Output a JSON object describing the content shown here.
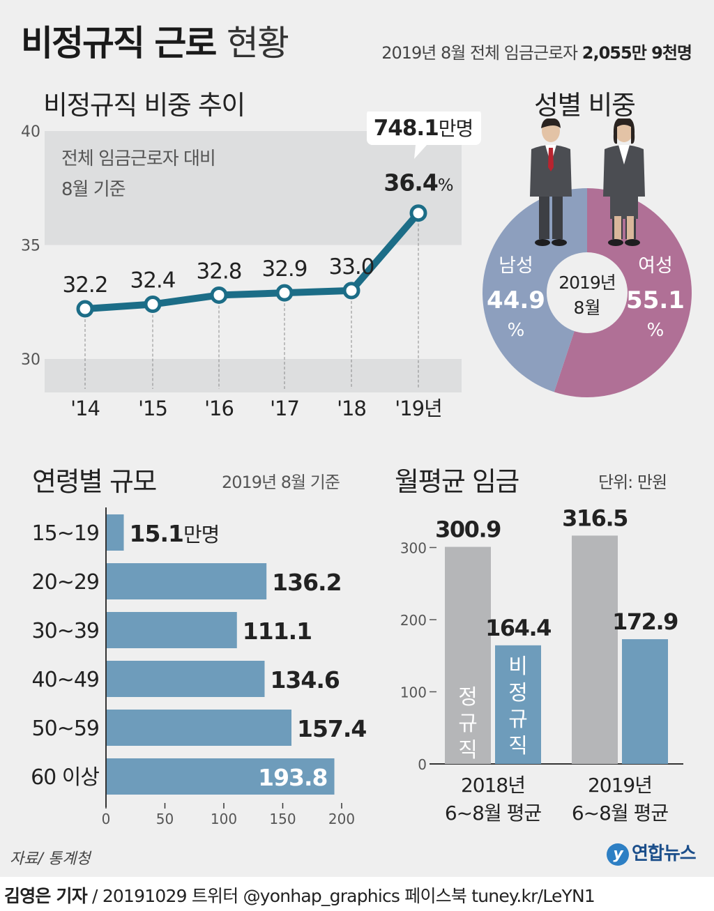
{
  "header": {
    "title_bold": "비정규직 근로",
    "title_light": "현황",
    "subtitle_prefix": "2019년 8월 전체 임금근로자 ",
    "subtitle_value": "2,055만 9천명"
  },
  "trend": {
    "section_title": "비정규직 비중 추이",
    "note_line1": "전체 임금근로자 대비",
    "note_line2": "8월 기준",
    "callout_value": "748.1",
    "callout_unit": "만명",
    "last_value_label": "36.4",
    "last_value_unit": "%"
  },
  "gender": {
    "section_title": "성별 비중",
    "center_line1": "2019년",
    "center_line2": "8월",
    "male_label": "남성",
    "male_value": "44.9",
    "female_label": "여성",
    "female_value": "55.1",
    "pct": "%"
  },
  "age": {
    "section_title": "연령별 규모",
    "note": "2019년 8월 기준",
    "first_unit": "만명"
  },
  "wage": {
    "section_title": "월평균 임금",
    "unit_note": "단위: 만원",
    "bar_label_regular": "정규직",
    "bar_label_nonregular": "비정규직",
    "group1_line1": "2018년",
    "group1_line2": "6~8월 평균",
    "group2_line1": "2019년",
    "group2_line2": "6~8월 평균"
  },
  "chart_data": [
    {
      "type": "line",
      "title": "비정규직 비중 추이",
      "categories": [
        "'14",
        "'15",
        "'16",
        "'17",
        "'18",
        "'19년"
      ],
      "series": [
        {
          "values": [
            32.2,
            32.4,
            32.8,
            32.9,
            33.0,
            36.4
          ]
        }
      ],
      "ylim": [
        30,
        40
      ],
      "yticks": [
        "30",
        "35",
        "40"
      ],
      "value_labels": [
        "32.2",
        "32.4",
        "32.8",
        "32.9",
        "33.0"
      ]
    },
    {
      "type": "pie",
      "title": "성별 비중",
      "labels": [
        "남성",
        "여성"
      ],
      "values": [
        44.9,
        55.1
      ],
      "colors": [
        "#8d9fbe",
        "#b07096"
      ]
    },
    {
      "type": "bar",
      "title": "연령별 규모",
      "categories": [
        "15~19",
        "20~29",
        "30~39",
        "40~49",
        "50~59",
        "60 이상"
      ],
      "values": [
        15.1,
        136.2,
        111.1,
        134.6,
        157.4,
        193.8
      ],
      "value_labels": [
        "15.1",
        "136.2",
        "111.1",
        "134.6",
        "157.4",
        "193.8"
      ],
      "xlim": [
        0,
        200
      ],
      "xticks": [
        "0",
        "50",
        "100",
        "150",
        "200"
      ],
      "color": "#6e9cbb"
    },
    {
      "type": "bar",
      "title": "월평균 임금",
      "categories": [
        "2018년 6~8월 평균",
        "2019년 6~8월 평균"
      ],
      "series": [
        {
          "name": "정규직",
          "values": [
            300.9,
            316.5
          ],
          "labels": [
            "300.9",
            "316.5"
          ],
          "color": "#b5b6b8"
        },
        {
          "name": "비정규직",
          "values": [
            164.4,
            172.9
          ],
          "labels": [
            "164.4",
            "172.9"
          ],
          "color": "#6e9cbb"
        }
      ],
      "ylim": [
        0,
        330
      ],
      "yticks": [
        "0",
        "100",
        "200",
        "300"
      ]
    }
  ],
  "footer": {
    "source": "자료/ 통계청",
    "logo": "연합뉴스",
    "logo_mark": "y",
    "reporter": "김영은 기자",
    "rest": " / 20191029  트위터 @yonhap_graphics  페이스북 tuney.kr/LeYN1"
  }
}
